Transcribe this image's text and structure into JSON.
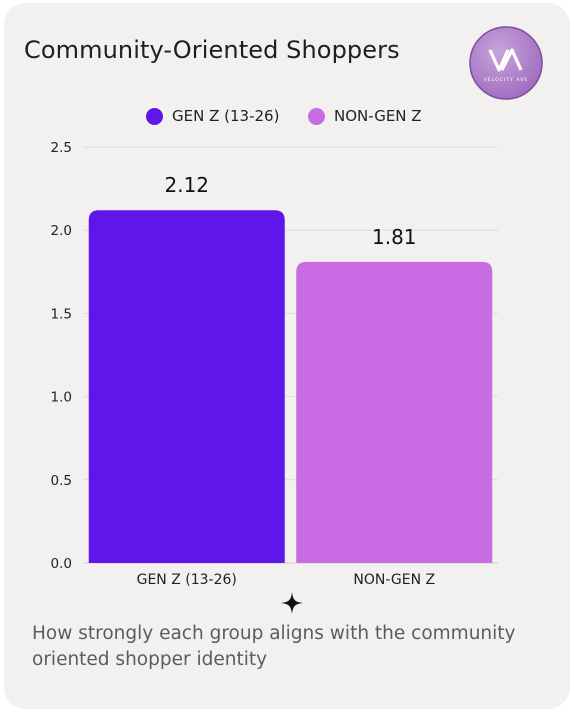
{
  "title": "Community-Oriented Shoppers",
  "logo": {
    "text": "VELOCITY AVE",
    "icon": "velocity-ave-logo"
  },
  "legend": [
    {
      "label": "GEN Z (13-26)",
      "color": "#5f16e8"
    },
    {
      "label": "NON-GEN Z",
      "color": "#c96ce4"
    }
  ],
  "chart_data": {
    "type": "bar",
    "categories": [
      "GEN Z (13-26)",
      "NON-GEN Z"
    ],
    "values": [
      2.12,
      1.81
    ],
    "value_labels": [
      "2.12",
      "1.81"
    ],
    "colors": [
      "#5f16e8",
      "#c96ce4"
    ],
    "yticks": [
      "0.0",
      "0.5",
      "1.0",
      "1.5",
      "2.0",
      "2.5"
    ],
    "ylim": [
      0,
      2.5
    ],
    "grid": true,
    "legend_position": "top-center"
  },
  "footer_icon": "four-point-star-icon",
  "caption": "How strongly each group aligns with the community oriented shopper identity"
}
